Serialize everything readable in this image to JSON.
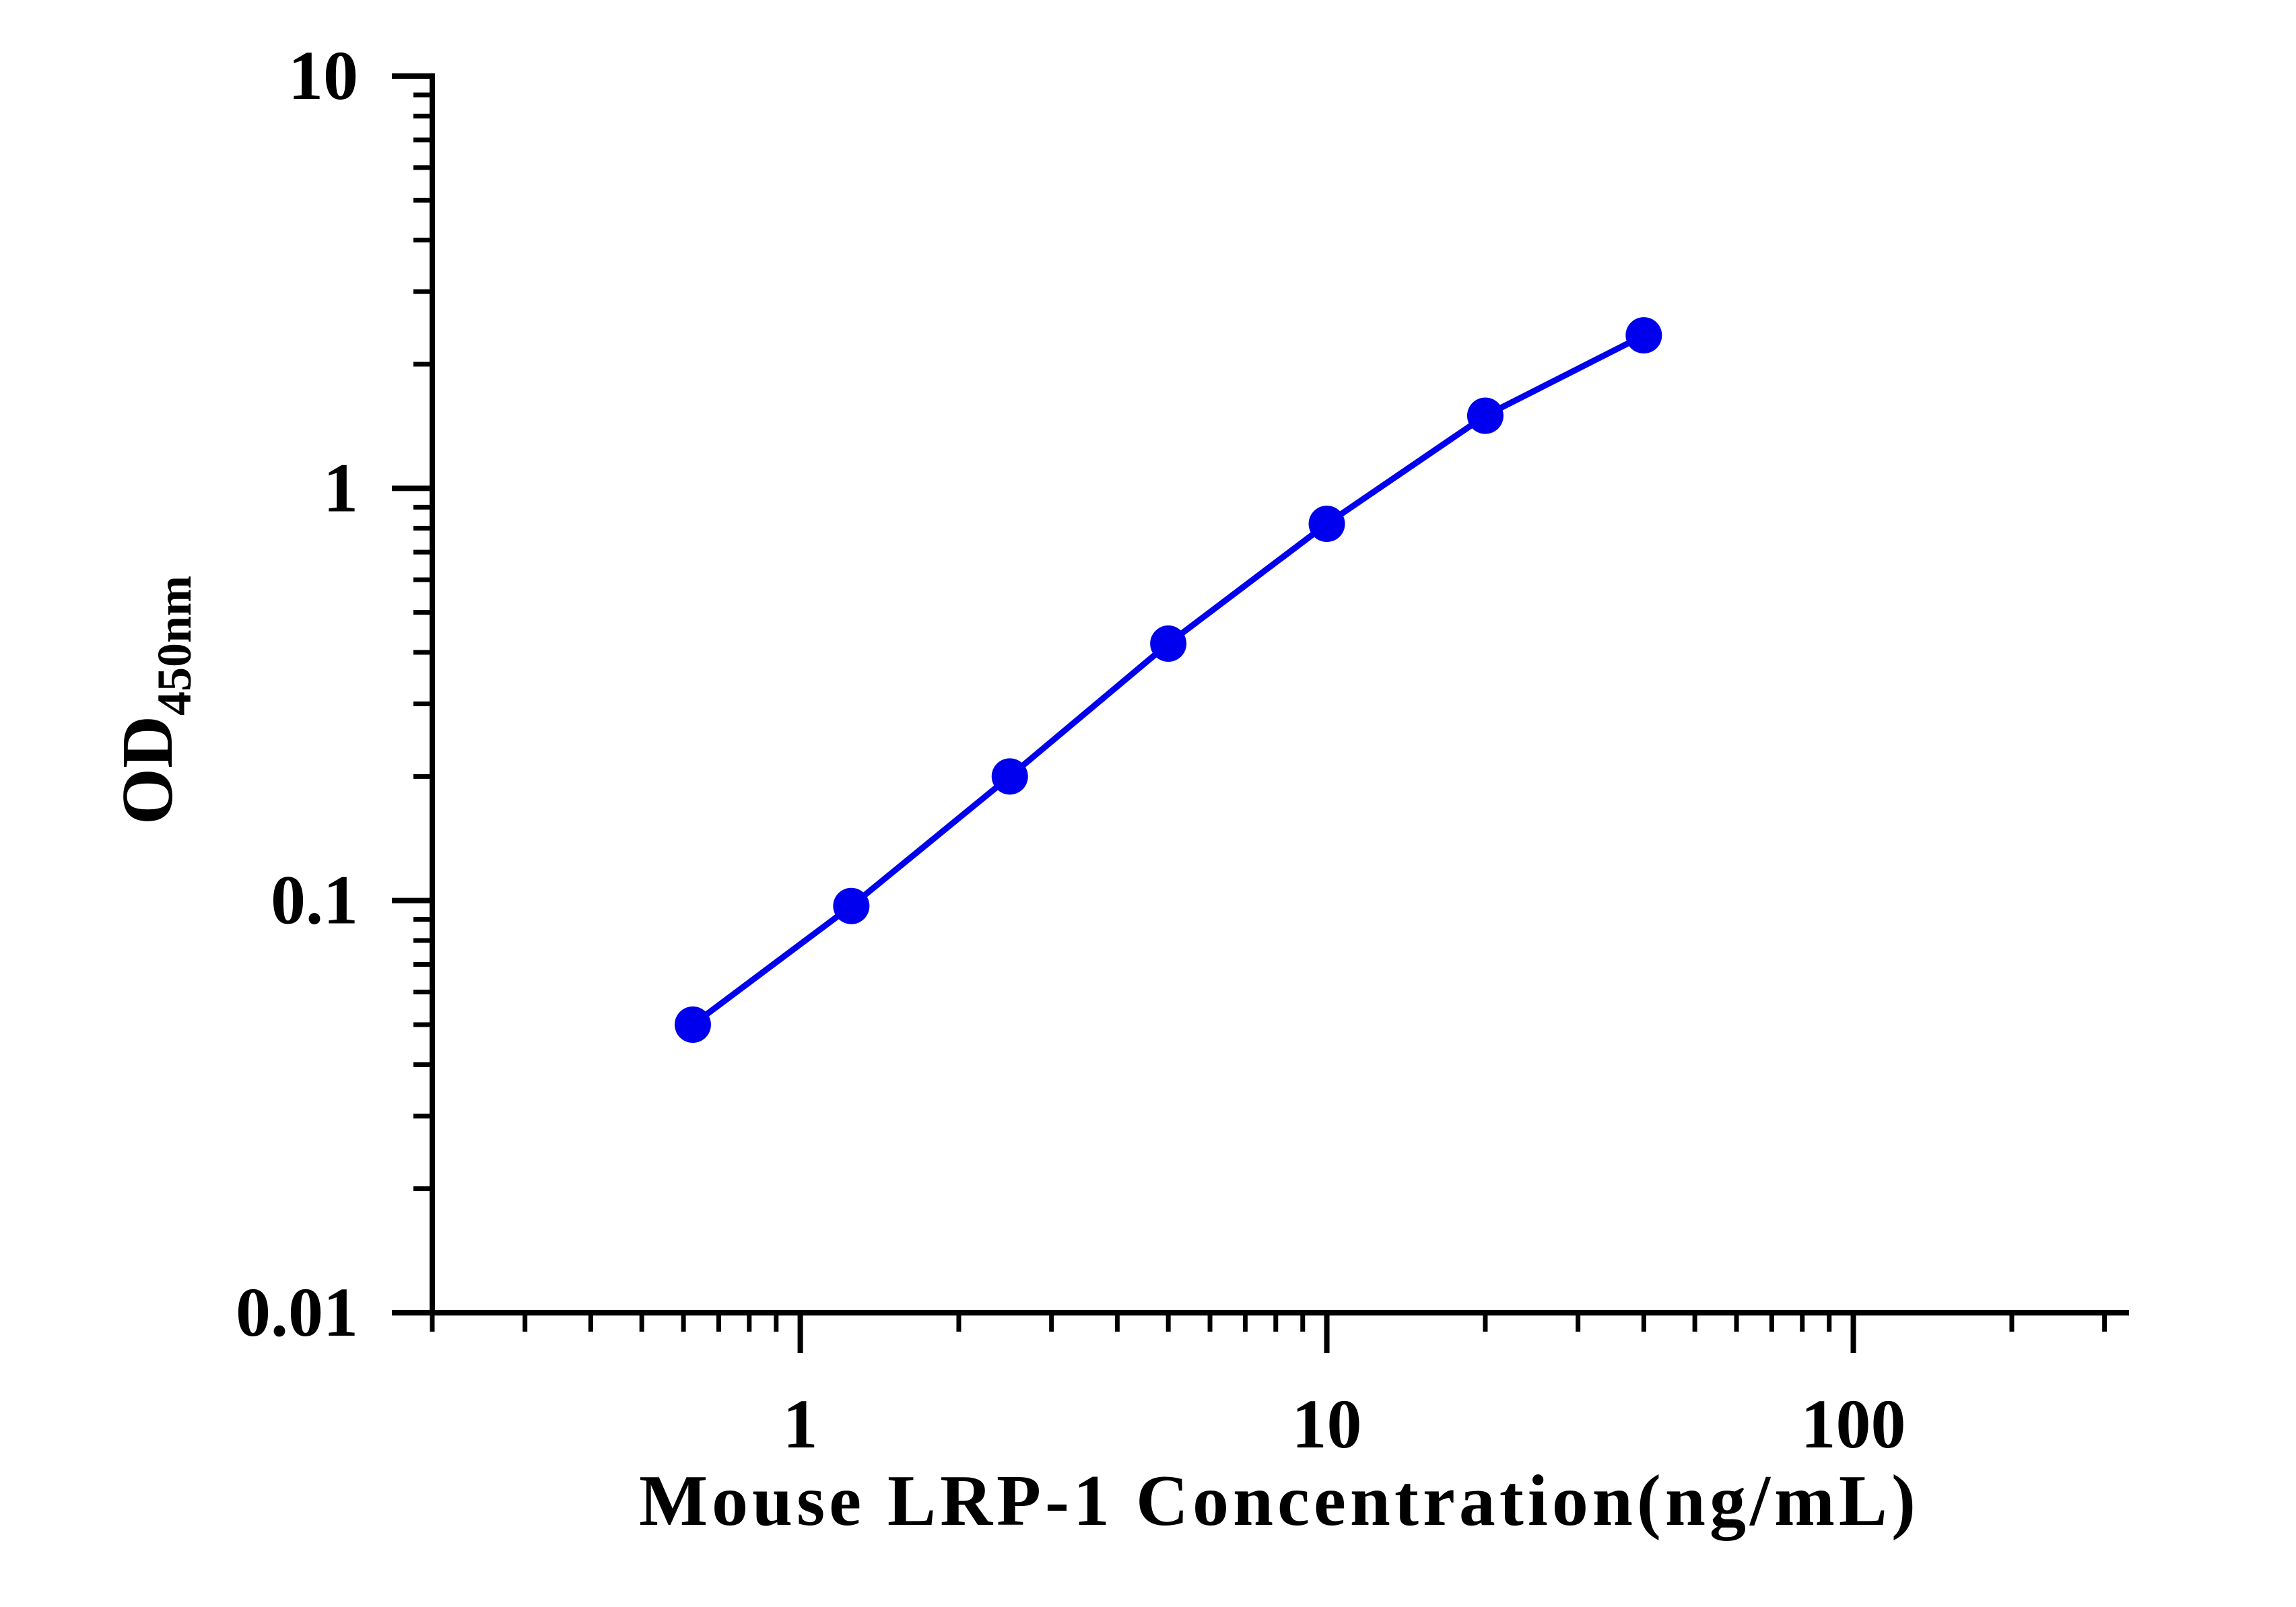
{
  "chart_data": {
    "type": "line",
    "title": "",
    "xlabel": "Mouse LRP-1 Concentration(ng/mL)",
    "ylabel": {
      "main": "OD",
      "subscript": "450nm"
    },
    "x_scale": "log",
    "y_scale": "log",
    "xlim": [
      0.2,
      330
    ],
    "ylim": [
      0.01,
      10
    ],
    "x_ticks": [
      {
        "value": 1,
        "label": "1"
      },
      {
        "value": 10,
        "label": "10"
      },
      {
        "value": 100,
        "label": "100"
      }
    ],
    "y_ticks": [
      {
        "value": 0.01,
        "label": "0.01"
      },
      {
        "value": 0.1,
        "label": "0.1"
      },
      {
        "value": 1,
        "label": "1"
      },
      {
        "value": 10,
        "label": "10"
      }
    ],
    "grid": false,
    "legend": "none",
    "series": [
      {
        "color": "#0000ee",
        "x": [
          0.625,
          1.25,
          2.5,
          5,
          10,
          20,
          40
        ],
        "y": [
          0.05,
          0.097,
          0.2,
          0.42,
          0.82,
          1.5,
          2.35
        ]
      }
    ]
  }
}
